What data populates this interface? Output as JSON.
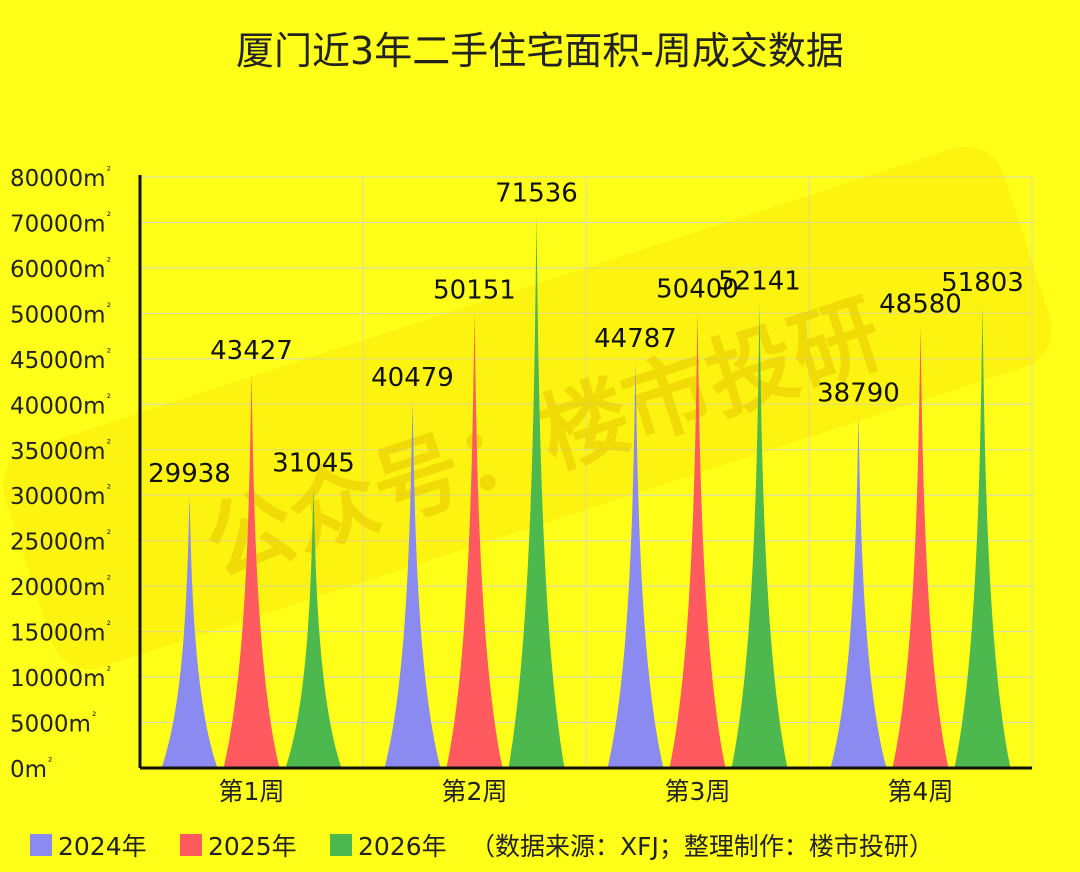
{
  "chart_data": {
    "type": "bar",
    "bar_style": "pointed-spike",
    "title": "厦门近3年二手住宅面积-周成交数据",
    "categories": [
      "第1周",
      "第2周",
      "第3周",
      "第4周"
    ],
    "series": [
      {
        "name": "2024年",
        "color": "#8A8AF0",
        "values": [
          29938,
          40479,
          44787,
          38790
        ]
      },
      {
        "name": "2025年",
        "color": "#FF5A5F",
        "values": [
          43427,
          50151,
          50400,
          48580
        ]
      },
      {
        "name": "2026年",
        "color": "#4DB84D",
        "values": [
          31045,
          71536,
          52141,
          51803
        ]
      }
    ],
    "y_ticks": [
      "80000m²",
      "70000m²",
      "60000m²",
      "50000m²",
      "45000m²",
      "40000m²",
      "35000m²",
      "30000m²",
      "25000m²",
      "20000m²",
      "15000m²",
      "10000m²",
      "5000m²",
      "0m²"
    ],
    "ylim": [
      0,
      80000
    ],
    "grid": true,
    "legend_position": "bottom-left",
    "source_note": "（数据来源：XFJ；整理制作：楼市投研）",
    "watermark": "公众号：楼市投研",
    "background_color": "#FFFF1A"
  }
}
